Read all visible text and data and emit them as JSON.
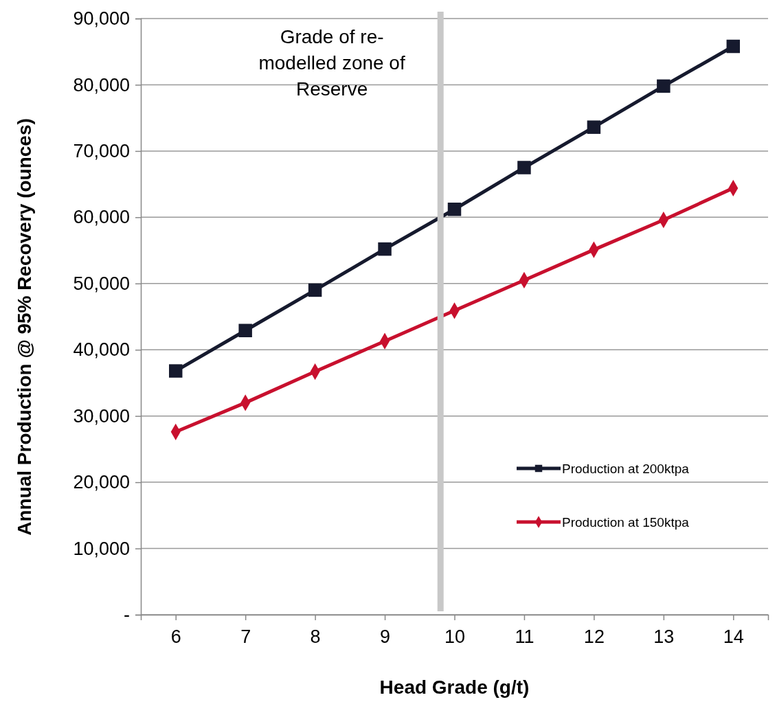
{
  "chart_data": {
    "type": "line",
    "xlabel": "Head Grade (g/t)",
    "ylabel": "Annual Production @ 95% Recovery (ounces)",
    "x": [
      6,
      7,
      8,
      9,
      10,
      11,
      12,
      13,
      14
    ],
    "xlim": [
      5.5,
      14.5
    ],
    "xticks": [
      6,
      7,
      8,
      9,
      10,
      11,
      12,
      13,
      14
    ],
    "ylim": [
      0,
      90000
    ],
    "yticks": [
      {
        "value": 0,
        "label": "-"
      },
      {
        "value": 10000,
        "label": "10,000"
      },
      {
        "value": 20000,
        "label": "20,000"
      },
      {
        "value": 30000,
        "label": "30,000"
      },
      {
        "value": 40000,
        "label": "40,000"
      },
      {
        "value": 50000,
        "label": "50,000"
      },
      {
        "value": 60000,
        "label": "60,000"
      },
      {
        "value": 70000,
        "label": "70,000"
      },
      {
        "value": 80000,
        "label": "80,000"
      },
      {
        "value": 90000,
        "label": "90,000"
      }
    ],
    "grid": "y",
    "legend": "right",
    "series": [
      {
        "name": "Production at 200ktpa",
        "color": "#161a2e",
        "marker": "square",
        "values": [
          36800,
          42900,
          49000,
          55200,
          61200,
          67500,
          73600,
          79800,
          85800
        ]
      },
      {
        "name": "Production at 150ktpa",
        "color": "#c8102e",
        "marker": "diamond",
        "values": [
          27600,
          32000,
          36700,
          41300,
          45900,
          50500,
          55100,
          59600,
          64400
        ]
      }
    ],
    "ref_lines": [
      {
        "axis": "x",
        "value": 9.8,
        "label": "Grade of re-modelled zone of Reserve",
        "color": "#c8c8c8"
      }
    ]
  }
}
